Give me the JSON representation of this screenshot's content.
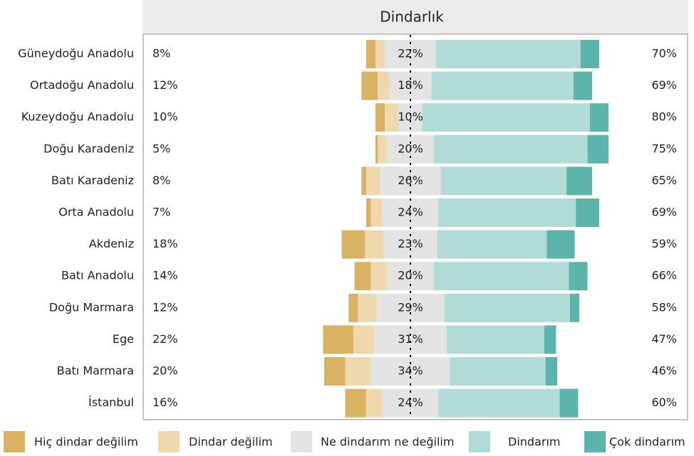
{
  "chart_data": {
    "type": "diverging-bar",
    "title": "Dindarlık",
    "categories": [
      "Güneydoğu Anadolu",
      "Ortadoğu Anadolu",
      "Kuzeydoğu Anadolu",
      "Doğu Karadeniz",
      "Batı Karadeniz",
      "Orta Anadolu",
      "Akdeniz",
      "Batı Anadolu",
      "Doğu Marmara",
      "Ege",
      "Batı Marmara",
      "İstanbul"
    ],
    "neutral_series": 2,
    "left_labels": [
      "8%",
      "12%",
      "10%",
      "5%",
      "8%",
      "7%",
      "18%",
      "14%",
      "12%",
      "22%",
      "20%",
      "16%"
    ],
    "right_labels": [
      "70%",
      "69%",
      "80%",
      "75%",
      "65%",
      "69%",
      "59%",
      "66%",
      "58%",
      "47%",
      "46%",
      "60%"
    ],
    "series": [
      {
        "name": "Hiç dindar değilim",
        "color": "#d9b263",
        "values": [
          4,
          7,
          4,
          1,
          2,
          2,
          10,
          7,
          4,
          13,
          9,
          9
        ]
      },
      {
        "name": "Dindar değilim",
        "color": "#eed8ae",
        "values": [
          4,
          5,
          6,
          4,
          6,
          5,
          8,
          7,
          8,
          9,
          11,
          7
        ]
      },
      {
        "name": "Ne dindarım ne değilim",
        "color": "#e3e3e3",
        "values": [
          22,
          18,
          10,
          20,
          26,
          24,
          23,
          20,
          29,
          31,
          34,
          24
        ],
        "value_labels": [
          "22%",
          "18%",
          "10%",
          "20%",
          "26%",
          "24%",
          "23%",
          "20%",
          "29%",
          "31%",
          "34%",
          "24%"
        ]
      },
      {
        "name": "Dindarım",
        "color": "#b0dbd6",
        "values": [
          62,
          61,
          72,
          66,
          54,
          59,
          47,
          58,
          54,
          42,
          41,
          52
        ]
      },
      {
        "name": "Çok dindarım",
        "color": "#5bb5aa",
        "values": [
          8,
          8,
          8,
          9,
          11,
          10,
          12,
          8,
          4,
          5,
          5,
          8
        ]
      }
    ]
  }
}
